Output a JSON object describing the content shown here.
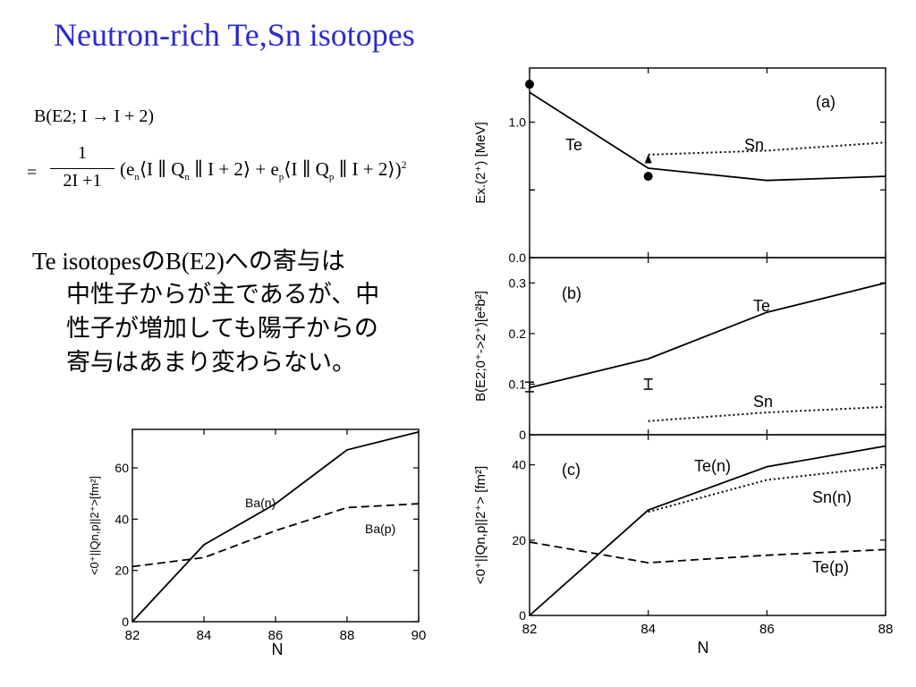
{
  "slide": {
    "title": "Neutron-rich Te,Sn isotopes",
    "formula": {
      "line1": "B(E2; I → I + 2)",
      "equals": "=",
      "numerator": "1",
      "denominator": "2I +1",
      "body": "(e<sub>n</sub>⟨I ∥ Q<sub>n</sub> ∥ I + 2⟩ + e<sub>p</sub>⟨I ∥ Q<sub>p</sub> ∥ I + 2⟩)<sup>2</sup>"
    },
    "text_lines": [
      "Te isotopesのB(E2)への寄与は",
      "中性子からが主であるが、中",
      "性子が増加しても陽子からの",
      "寄与はあまり変わらない。"
    ]
  },
  "chart_data": [
    {
      "id": "a",
      "type": "line",
      "panel_label": "(a)",
      "ylabel": "Ex.(2⁺) [MeV]",
      "ylim": [
        0.0,
        1.4
      ],
      "yticks": [
        0.0,
        0.5,
        1.0
      ],
      "ytick_labels": [
        "0.0",
        "",
        "1.0"
      ],
      "x": [
        82,
        84,
        86,
        88
      ],
      "xlim": [
        82,
        88
      ],
      "series": [
        {
          "name": "Te",
          "style": "solid",
          "x": [
            82,
            84,
            86,
            88
          ],
          "values": [
            1.22,
            0.66,
            0.57,
            0.6
          ]
        },
        {
          "name": "Sn",
          "style": "dotted",
          "x": [
            84,
            86,
            88
          ],
          "values": [
            0.76,
            0.79,
            0.85
          ]
        }
      ],
      "markers": [
        {
          "shape": "circle",
          "x": 82,
          "y": 1.28
        },
        {
          "shape": "circle",
          "x": 84,
          "y": 0.6
        },
        {
          "shape": "triangle",
          "x": 84,
          "y": 0.73
        }
      ]
    },
    {
      "id": "b",
      "type": "line",
      "panel_label": "(b)",
      "ylabel": "B(E2;0⁺->2⁺)[e²b²]",
      "ylim": [
        0.0,
        0.35
      ],
      "yticks": [
        0.0,
        0.1,
        0.2,
        0.3
      ],
      "x": [
        82,
        84,
        86,
        88
      ],
      "xlim": [
        82,
        88
      ],
      "series": [
        {
          "name": "Te",
          "style": "solid",
          "x": [
            82,
            84,
            86,
            88
          ],
          "values": [
            0.093,
            0.15,
            0.242,
            0.3
          ]
        },
        {
          "name": "Sn",
          "style": "dotted",
          "x": [
            84,
            86,
            88
          ],
          "values": [
            0.027,
            0.044,
            0.055
          ]
        }
      ],
      "error_bars": [
        {
          "x": 82,
          "low": 0.085,
          "high": 0.104
        },
        {
          "x": 84,
          "low": 0.09,
          "high": 0.11
        }
      ]
    },
    {
      "id": "c",
      "type": "line",
      "panel_label": "(c)",
      "xlabel": "N",
      "ylabel": "<0⁺||Qn,p||2⁺> [fm²]",
      "ylim": [
        0,
        48
      ],
      "yticks": [
        0,
        20,
        40
      ],
      "x": [
        82,
        84,
        86,
        88
      ],
      "xlim": [
        82,
        88
      ],
      "xticks": [
        82,
        84,
        86,
        88
      ],
      "series": [
        {
          "name": "Te(n)",
          "style": "solid",
          "x": [
            82,
            84,
            86,
            88
          ],
          "values": [
            0,
            28,
            39.5,
            45
          ]
        },
        {
          "name": "Sn(n)",
          "style": "dotted",
          "x": [
            84,
            86,
            88
          ],
          "values": [
            27.5,
            36,
            39.5
          ]
        },
        {
          "name": "Te(p)",
          "style": "dashed",
          "x": [
            82,
            84,
            86,
            88
          ],
          "values": [
            19.5,
            14,
            16,
            17.5
          ]
        }
      ]
    },
    {
      "id": "ba",
      "type": "line",
      "xlabel": "N",
      "ylabel": "<0⁺||Qn,p||2⁺>[fm²]",
      "xlim": [
        82,
        90
      ],
      "xticks": [
        82,
        84,
        86,
        88,
        90
      ],
      "ylim": [
        0,
        75
      ],
      "yticks": [
        0,
        20,
        40,
        60
      ],
      "series": [
        {
          "name": "Ba(n)",
          "style": "solid",
          "x": [
            82,
            84,
            86,
            88,
            90
          ],
          "values": [
            0,
            30,
            46,
            67,
            74
          ]
        },
        {
          "name": "Ba(p)",
          "style": "dashed",
          "x": [
            82,
            84,
            86,
            88,
            90
          ],
          "values": [
            21.5,
            25,
            35.5,
            44.5,
            46
          ]
        }
      ]
    }
  ]
}
